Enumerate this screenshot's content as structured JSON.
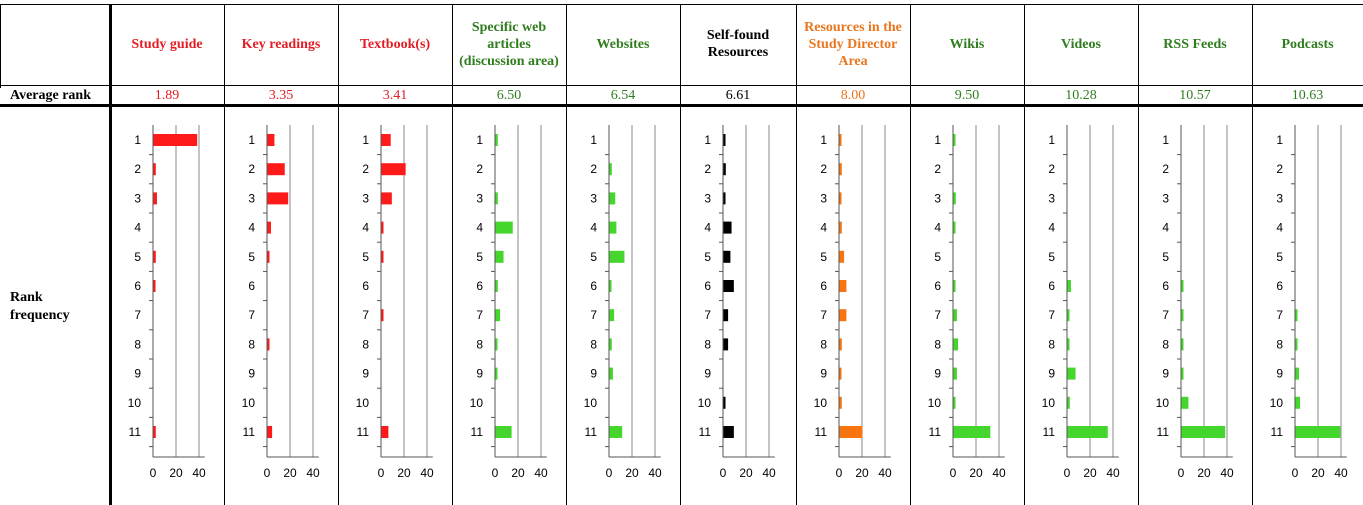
{
  "row_labels": {
    "average_rank": "Average rank",
    "rank_frequency_line1": "Rank",
    "rank_frequency_line2": "frequency"
  },
  "columns": [
    {
      "title": "Study guide",
      "avg": "1.89",
      "color": "#e21d24",
      "bar": "#ff1a1a"
    },
    {
      "title": "Key readings",
      "avg": "3.35",
      "color": "#e21d24",
      "bar": "#ff1a1a"
    },
    {
      "title": "Textbook(s)",
      "avg": "3.41",
      "color": "#e21d24",
      "bar": "#ff1a1a"
    },
    {
      "title": "Specific web articles (discussion area)",
      "avg": "6.50",
      "color": "#2f7d1e",
      "bar": "#44d62c"
    },
    {
      "title": "Websites",
      "avg": "6.54",
      "color": "#2f7d1e",
      "bar": "#44d62c"
    },
    {
      "title": "Self-found Resources",
      "avg": "6.61",
      "color": "#000000",
      "bar": "#000000"
    },
    {
      "title": "Resources in the Study Director Area",
      "avg": "8.00",
      "color": "#e8761e",
      "bar": "#f7740f"
    },
    {
      "title": "Wikis",
      "avg": "9.50",
      "color": "#2f7d1e",
      "bar": "#44d62c"
    },
    {
      "title": "Videos",
      "avg": "10.28",
      "color": "#2f7d1e",
      "bar": "#44d62c"
    },
    {
      "title": "RSS Feeds",
      "avg": "10.57",
      "color": "#2f7d1e",
      "bar": "#44d62c"
    },
    {
      "title": "Podcasts",
      "avg": "10.63",
      "color": "#2f7d1e",
      "bar": "#44d62c"
    }
  ],
  "chart_data": {
    "type": "bar",
    "orientation": "horizontal",
    "categories": [
      "1",
      "2",
      "3",
      "4",
      "5",
      "6",
      "7",
      "8",
      "9",
      "10",
      "11"
    ],
    "x_ticks": [
      "0",
      "20",
      "40"
    ],
    "xlim": [
      0,
      45
    ],
    "grid": true,
    "series": [
      {
        "name": "Study guide",
        "values": [
          38,
          2,
          3,
          0,
          2,
          1,
          0,
          0,
          0,
          0,
          2
        ]
      },
      {
        "name": "Key readings",
        "values": [
          6,
          15,
          18,
          3,
          1,
          0,
          0,
          1,
          0,
          0,
          4
        ]
      },
      {
        "name": "Textbook(s)",
        "values": [
          8,
          21,
          9,
          1,
          1,
          0,
          1,
          0,
          0,
          0,
          6
        ]
      },
      {
        "name": "Specific web articles (discussion area)",
        "values": [
          2,
          0,
          2,
          15,
          7,
          2,
          4,
          1,
          1,
          0,
          14
        ]
      },
      {
        "name": "Websites",
        "values": [
          0,
          2,
          5,
          6,
          13,
          1,
          4,
          2,
          3,
          0,
          11
        ]
      },
      {
        "name": "Self-found Resources",
        "values": [
          1,
          2,
          1,
          7,
          6,
          9,
          4,
          4,
          0,
          1,
          9
        ]
      },
      {
        "name": "Resources in the Study Director Area",
        "values": [
          1,
          2,
          1,
          2,
          4,
          6,
          6,
          2,
          1,
          2,
          20
        ]
      },
      {
        "name": "Wikis",
        "values": [
          1,
          0,
          2,
          1,
          0,
          1,
          3,
          4,
          3,
          1,
          32
        ]
      },
      {
        "name": "Videos",
        "values": [
          0,
          0,
          0,
          0,
          0,
          3,
          1,
          1,
          7,
          2,
          35
        ]
      },
      {
        "name": "RSS Feeds",
        "values": [
          0,
          0,
          0,
          0,
          0,
          1,
          1,
          1,
          1,
          6,
          38
        ]
      },
      {
        "name": "Podcasts",
        "values": [
          0,
          0,
          0,
          0,
          0,
          0,
          1,
          1,
          3,
          4,
          39
        ]
      }
    ]
  }
}
